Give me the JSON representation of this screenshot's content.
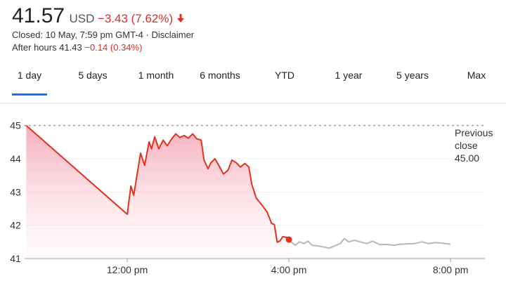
{
  "quote": {
    "price": "41.57",
    "currency": "USD",
    "change": "−3.43 (7.62%)",
    "closed": "Closed: 10 May, 7:59 pm GMT-4",
    "disclaimer": "Disclaimer",
    "after_hours_label": "After hours",
    "after_hours_price": "41.43",
    "after_hours_change": "−0.14 (0.34%)"
  },
  "tabs": [
    "1 day",
    "5 days",
    "1 month",
    "6 months",
    "YTD",
    "1 year",
    "5 years",
    "Max"
  ],
  "selected_tab": 0,
  "chart_data": {
    "type": "line",
    "xlim": [
      9.46,
      20.85
    ],
    "xticks": [
      {
        "value": 12,
        "label": "12:00 pm"
      },
      {
        "value": 16,
        "label": "4:00 pm"
      },
      {
        "value": 20,
        "label": "8:00 pm"
      }
    ],
    "ylim": [
      41,
      45.5
    ],
    "yticks": [
      41,
      42,
      43,
      44,
      45
    ],
    "grid": true,
    "reference": {
      "text": "Previous close",
      "value": 45,
      "value_label": "45.00"
    },
    "series": [
      {
        "color": "#e0321d",
        "fill": true,
        "x": [
          9.5,
          12.0,
          12.09,
          12.16,
          12.33,
          12.43,
          12.54,
          12.6,
          12.68,
          12.78,
          12.89,
          12.99,
          13.1,
          13.2,
          13.3,
          13.41,
          13.51,
          13.62,
          13.72,
          13.83,
          13.9,
          14.0,
          14.07,
          14.17,
          14.28,
          14.38,
          14.49,
          14.59,
          14.7,
          14.8,
          14.91,
          15.01,
          15.08,
          15.19,
          15.33,
          15.46,
          15.57,
          15.64,
          15.71,
          15.78,
          15.85,
          15.96,
          16.0
        ],
        "values": [
          45,
          42.33,
          43.18,
          42.9,
          44.17,
          43.8,
          44.51,
          44.3,
          44.66,
          44.3,
          44.56,
          44.39,
          44.6,
          44.75,
          44.64,
          44.7,
          44.62,
          44.75,
          44.6,
          44.56,
          43.96,
          43.7,
          43.88,
          44.0,
          43.77,
          43.54,
          43.65,
          43.96,
          43.88,
          43.75,
          43.86,
          43.75,
          43.24,
          42.82,
          42.61,
          42.4,
          42.06,
          42.02,
          41.49,
          41.53,
          41.66,
          41.63,
          41.57
        ]
      },
      {
        "color": "#b8b8b8",
        "fill": false,
        "x": [
          16.0,
          16.05,
          16.16,
          16.26,
          16.37,
          16.47,
          16.57,
          16.71,
          16.85,
          16.99,
          17.13,
          17.27,
          17.37,
          17.48,
          17.62,
          17.76,
          17.93,
          18.07,
          18.25,
          18.42,
          18.59,
          18.77,
          18.94,
          19.11,
          19.29,
          19.46,
          19.63,
          19.81,
          20.0
        ],
        "values": [
          41.57,
          41.5,
          41.4,
          41.5,
          41.45,
          41.52,
          41.4,
          41.38,
          41.35,
          41.31,
          41.38,
          41.45,
          41.6,
          41.5,
          41.55,
          41.5,
          41.45,
          41.52,
          41.42,
          41.42,
          41.4,
          41.43,
          41.44,
          41.45,
          41.5,
          41.45,
          41.48,
          41.46,
          41.43
        ]
      }
    ]
  }
}
